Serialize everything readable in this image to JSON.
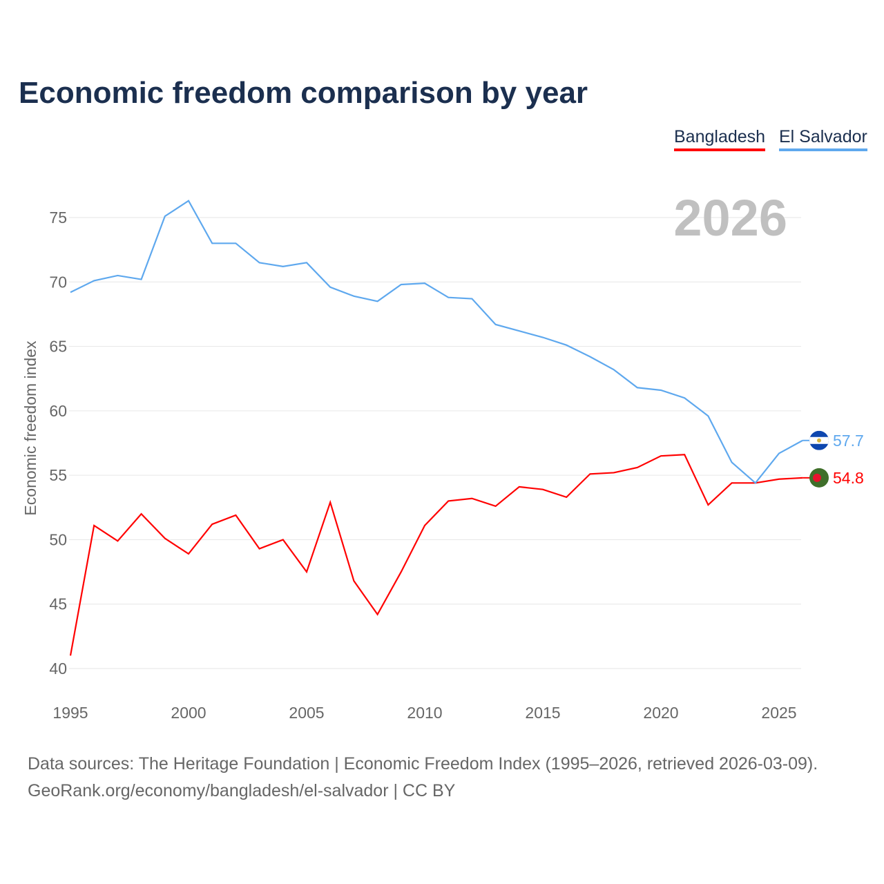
{
  "title": "Economic freedom comparison by year",
  "year_label": "2026",
  "footer": {
    "line1": "Data sources: The Heritage Foundation | Economic Freedom Index (1995–2026, retrieved 2026-03-09).",
    "line2": "GeoRank.org/economy/bangladesh/el-salvador | CC BY"
  },
  "chart_data": {
    "type": "line",
    "title": "Economic freedom comparison by year",
    "xlabel": "",
    "ylabel": "Economic freedom index",
    "xlim": [
      1995,
      2026
    ],
    "ylim": [
      40,
      77
    ],
    "x_ticks": [
      1995,
      2000,
      2005,
      2010,
      2015,
      2020,
      2025
    ],
    "y_ticks": [
      40,
      45,
      50,
      55,
      60,
      65,
      70,
      75
    ],
    "grid": true,
    "legend_position": "top-right",
    "x": [
      1995,
      1996,
      1997,
      1998,
      1999,
      2000,
      2001,
      2002,
      2003,
      2004,
      2005,
      2006,
      2007,
      2008,
      2009,
      2010,
      2011,
      2012,
      2013,
      2014,
      2015,
      2016,
      2017,
      2018,
      2019,
      2020,
      2021,
      2022,
      2023,
      2024,
      2025,
      2026
    ],
    "series": [
      {
        "name": "Bangladesh",
        "color": "#ff0000",
        "end_label": "54.8",
        "values": [
          41.0,
          51.1,
          49.9,
          52.0,
          50.1,
          48.9,
          51.2,
          51.9,
          49.3,
          50.0,
          47.5,
          52.9,
          46.8,
          44.2,
          47.5,
          51.1,
          53.0,
          53.2,
          52.6,
          54.1,
          53.9,
          53.3,
          55.1,
          55.2,
          55.6,
          56.5,
          56.6,
          52.7,
          54.4,
          54.4,
          54.7,
          54.8
        ]
      },
      {
        "name": "El Salvador",
        "color": "#5ea8ee",
        "end_label": "57.7",
        "values": [
          69.2,
          70.1,
          70.5,
          70.2,
          75.1,
          76.3,
          73.0,
          73.0,
          71.5,
          71.2,
          71.5,
          69.6,
          68.9,
          68.5,
          69.8,
          69.9,
          68.8,
          68.7,
          66.7,
          66.2,
          65.7,
          65.1,
          64.2,
          63.2,
          61.8,
          61.6,
          61.0,
          59.6,
          56.0,
          54.4,
          56.7,
          57.7
        ]
      }
    ]
  }
}
